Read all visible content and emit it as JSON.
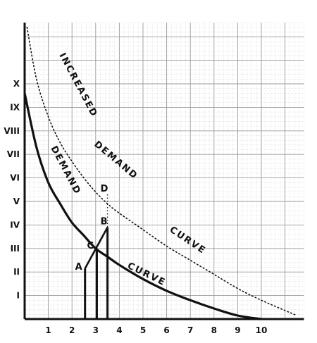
{
  "chart_data": {
    "type": "line",
    "title": "",
    "xlabel": "",
    "ylabel": "",
    "xlim": [
      0,
      11.8
    ],
    "ylim": [
      0,
      12.6
    ],
    "grid": true,
    "x_ticks": [
      "1",
      "2",
      "3",
      "4",
      "5",
      "6",
      "7",
      "8",
      "9",
      "10"
    ],
    "y_ticks": [
      "I",
      "II",
      "III",
      "IV",
      "V",
      "VI",
      "VII",
      "VIII",
      "IX",
      "X"
    ],
    "series": [
      {
        "name": "DEMAND CURVE",
        "style": "solid",
        "x": [
          0,
          0.5,
          1.0,
          1.5,
          2.0,
          2.5,
          3.0,
          3.5,
          4.0,
          5.0,
          6.0,
          7.0,
          8.0,
          9.0,
          10.0
        ],
        "y": [
          9.6,
          7.3,
          5.8,
          4.9,
          4.1,
          3.55,
          3.0,
          2.65,
          2.3,
          1.7,
          1.2,
          0.8,
          0.45,
          0.15,
          0.0
        ]
      },
      {
        "name": "INCREASED DEMAND CURVE",
        "style": "dotted",
        "x": [
          0.1,
          0.5,
          1.0,
          1.5,
          2.0,
          2.5,
          3.0,
          3.5,
          4.0,
          5.0,
          6.0,
          7.0,
          8.0,
          9.0,
          10.0,
          11.5
        ],
        "y": [
          12.4,
          10.2,
          8.6,
          7.5,
          6.7,
          6.0,
          5.4,
          4.9,
          4.5,
          3.8,
          3.1,
          2.5,
          1.9,
          1.3,
          0.8,
          0.15
        ]
      }
    ],
    "points": [
      {
        "label": "A",
        "x": 2.55,
        "y": 2.15
      },
      {
        "label": "B",
        "x": 3.5,
        "y": 3.9
      },
      {
        "label": "C",
        "x": 3.05,
        "y": 3.0
      },
      {
        "label": "D",
        "x": 3.5,
        "y": 5.3
      }
    ],
    "segments": [
      {
        "from": "A",
        "to": "B"
      }
    ],
    "verticals": [
      {
        "x": 2.55,
        "y_top": 2.15,
        "style": "solid"
      },
      {
        "x": 3.05,
        "y_top": 3.0,
        "style": "solid"
      },
      {
        "x": 3.5,
        "y_top": 3.9,
        "style": "solid"
      },
      {
        "x": 3.5,
        "y_top": 5.3,
        "style": "dotted"
      }
    ],
    "annotations": [
      {
        "text": "INCREASED",
        "near": "increased-upper"
      },
      {
        "text": "DEMAND",
        "near": "increased-mid"
      },
      {
        "text": "CURVE",
        "near": "increased-lower"
      },
      {
        "text": "DEMAND",
        "near": "demand-upper"
      },
      {
        "text": "CURVE",
        "near": "demand-lower"
      }
    ]
  }
}
